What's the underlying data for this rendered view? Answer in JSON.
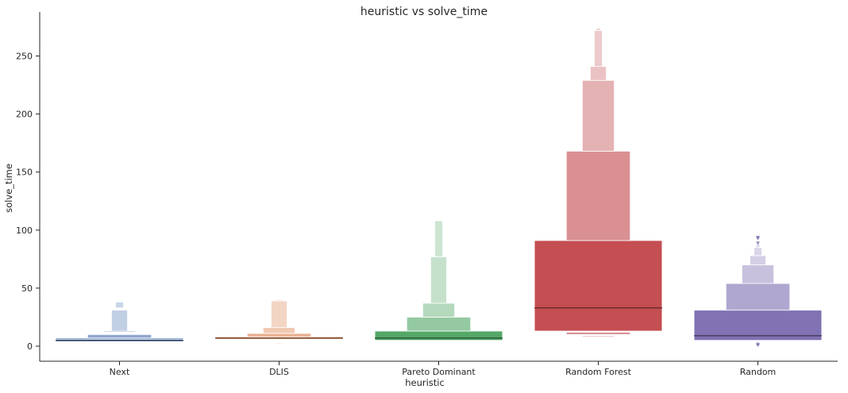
{
  "chart_data": {
    "type": "boxen",
    "title": "heuristic vs solve_time",
    "xlabel": "heuristic",
    "ylabel": "solve_time",
    "ylim": [
      -13,
      288
    ],
    "yticks": [
      0,
      50,
      100,
      150,
      200,
      250
    ],
    "grid": false,
    "categories": [
      "Next",
      "DLIS",
      "Pareto Dominant",
      "Random Forest",
      "Random"
    ],
    "series": [
      {
        "color": "#4c72b0",
        "median": 5,
        "boxes": [
          {
            "lo": 4,
            "hi": 6,
            "w": 1.0
          },
          {
            "lo": 6,
            "hi": 7,
            "w": 1.0
          },
          {
            "lo": 7,
            "hi": 10,
            "w": 0.5
          },
          {
            "lo": 12,
            "hi": 13,
            "w": 0.25
          },
          {
            "lo": 13,
            "hi": 31,
            "w": 0.125
          },
          {
            "lo": 33,
            "hi": 38,
            "w": 0.0625
          }
        ],
        "outliers": []
      },
      {
        "color": "#dd8452",
        "median": 7,
        "boxes": [
          {
            "lo": 6,
            "hi": 8,
            "w": 1.0
          },
          {
            "lo": 8,
            "hi": 11,
            "w": 0.5
          },
          {
            "lo": 11,
            "hi": 16,
            "w": 0.25
          },
          {
            "lo": 16,
            "hi": 39,
            "w": 0.125
          },
          {
            "lo": 39,
            "hi": 40,
            "w": 0.0625
          },
          {
            "lo": 2.5,
            "hi": 3,
            "w": 0.06
          }
        ],
        "outliers": []
      },
      {
        "color": "#55a868",
        "median": 7,
        "boxes": [
          {
            "lo": 5,
            "hi": 13,
            "w": 1.0
          },
          {
            "lo": 13,
            "hi": 25,
            "w": 0.5
          },
          {
            "lo": 25,
            "hi": 37,
            "w": 0.25
          },
          {
            "lo": 37,
            "hi": 77,
            "w": 0.125
          },
          {
            "lo": 77,
            "hi": 108,
            "w": 0.0625
          }
        ],
        "outliers": []
      },
      {
        "color": "#c44e52",
        "median": 33,
        "boxes": [
          {
            "lo": 13,
            "hi": 91,
            "w": 1.0
          },
          {
            "lo": 10,
            "hi": 12,
            "w": 0.5
          },
          {
            "lo": 8,
            "hi": 9,
            "w": 0.25
          },
          {
            "lo": 91,
            "hi": 168,
            "w": 0.5
          },
          {
            "lo": 168,
            "hi": 229,
            "w": 0.25
          },
          {
            "lo": 229,
            "hi": 241,
            "w": 0.125
          },
          {
            "lo": 241,
            "hi": 272,
            "w": 0.0625
          },
          {
            "lo": 272,
            "hi": 274,
            "w": 0.03
          }
        ],
        "outliers": []
      },
      {
        "color": "#8172b3",
        "median": 9,
        "boxes": [
          {
            "lo": 5,
            "hi": 31,
            "w": 1.0
          },
          {
            "lo": 31,
            "hi": 54,
            "w": 0.5
          },
          {
            "lo": 54,
            "hi": 70,
            "w": 0.25
          },
          {
            "lo": 70,
            "hi": 78,
            "w": 0.125
          },
          {
            "lo": 78,
            "hi": 85,
            "w": 0.0625
          },
          {
            "lo": 85,
            "hi": 88,
            "w": 0.03
          }
        ],
        "outliers": [
          1,
          2,
          89,
          93,
          94
        ]
      }
    ]
  }
}
